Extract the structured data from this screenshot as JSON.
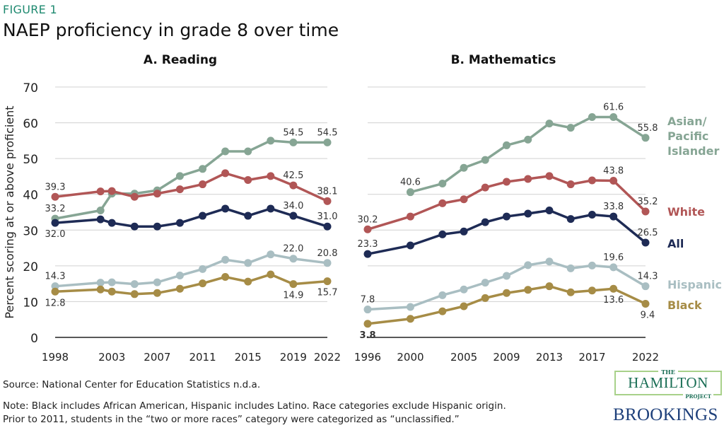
{
  "figure_label": "FIGURE 1",
  "title": "NAEP proficiency in grade 8 over time",
  "source": "Source: National Center for Education Statistics n.d.a.",
  "note_line1": "Note: Black includes African American, Hispanic includes Latino.  Race categories exclude Hispanic origin.",
  "note_line2": "Prior to 2011, students in the “two or more races” category were categorized as “unclassified.”",
  "logos": {
    "hamilton_top": "THE",
    "hamilton_main": "HAMILTON",
    "hamilton_bottom": "PROJECT",
    "brookings": "BROOKINGS"
  },
  "colors": {
    "asian": "#86a594",
    "white": "#b15656",
    "all": "#1e2b55",
    "hispanic": "#a9bec2",
    "black": "#a68c46",
    "grid": "#d0d0d0",
    "figure_label": "#1f8a70"
  },
  "chart_data": [
    {
      "type": "line",
      "title": "A. Reading",
      "ylabel": "Percent scoring at or above proficient",
      "ylim": [
        0,
        70
      ],
      "yticks": [
        0,
        10,
        20,
        30,
        40,
        50,
        60,
        70
      ],
      "xticks": [
        1998,
        2003,
        2007,
        2011,
        2015,
        2019,
        2022
      ],
      "xlim": [
        1998,
        2022
      ],
      "grid": true,
      "x": [
        1998,
        2002,
        2003,
        2005,
        2007,
        2009,
        2011,
        2013,
        2015,
        2017,
        2019,
        2022
      ],
      "series": [
        {
          "key": "asian",
          "values": [
            33.2,
            35.5,
            40.2,
            40.2,
            41.1,
            45.1,
            47.1,
            52.0,
            52.0,
            55.0,
            54.5,
            54.5
          ],
          "labels": [
            {
              "year": 1998,
              "text": "33.2"
            },
            {
              "year": 2019,
              "text": "54.5"
            },
            {
              "year": 2022,
              "text": "54.5"
            }
          ]
        },
        {
          "key": "white",
          "values": [
            39.3,
            40.8,
            40.9,
            39.3,
            40.2,
            41.4,
            42.8,
            45.9,
            44.0,
            45.1,
            42.5,
            38.1
          ],
          "labels": [
            {
              "year": 1998,
              "text": "39.3"
            },
            {
              "year": 2019,
              "text": "42.5"
            },
            {
              "year": 2022,
              "text": "38.1"
            }
          ]
        },
        {
          "key": "all",
          "values": [
            32.0,
            33.0,
            32.0,
            31.0,
            31.0,
            32.0,
            34.0,
            36.0,
            34.0,
            36.0,
            34.0,
            31.0
          ],
          "labels": [
            {
              "year": 1998,
              "text": "32.0",
              "below": true
            },
            {
              "year": 2019,
              "text": "34.0"
            },
            {
              "year": 2022,
              "text": "31.0"
            }
          ]
        },
        {
          "key": "hispanic",
          "values": [
            14.3,
            15.3,
            15.4,
            14.9,
            15.4,
            17.3,
            19.1,
            21.7,
            20.8,
            23.2,
            22.0,
            20.8
          ],
          "labels": [
            {
              "year": 1998,
              "text": "14.3"
            },
            {
              "year": 2019,
              "text": "22.0"
            },
            {
              "year": 2022,
              "text": "20.8"
            }
          ]
        },
        {
          "key": "black",
          "values": [
            12.8,
            13.4,
            12.8,
            12.1,
            12.4,
            13.6,
            15.1,
            16.9,
            15.6,
            17.6,
            14.9,
            15.7
          ],
          "labels": [
            {
              "year": 1998,
              "text": "12.8",
              "below": true
            },
            {
              "year": 2019,
              "text": "14.9",
              "below": true
            },
            {
              "year": 2022,
              "text": "15.7",
              "below": true
            }
          ]
        }
      ]
    },
    {
      "type": "line",
      "title": "B. Mathematics",
      "ylim": [
        0,
        70
      ],
      "xticks": [
        1996,
        2000,
        2005,
        2009,
        2013,
        2017,
        2022
      ],
      "xlim": [
        1996,
        2022
      ],
      "grid": true,
      "x": [
        1996,
        2000,
        2003,
        2005,
        2007,
        2009,
        2011,
        2013,
        2015,
        2017,
        2019,
        2022
      ],
      "series": [
        {
          "key": "asian",
          "name": "Asian/ Pacific Islander",
          "name_lines": [
            "Asian/",
            "Pacific",
            "Islander"
          ],
          "values": [
            null,
            40.6,
            43.0,
            47.4,
            49.6,
            53.7,
            55.3,
            59.8,
            58.6,
            61.6,
            61.6,
            55.8
          ],
          "labels": [
            {
              "year": 2000,
              "text": "40.6"
            },
            {
              "year": 2019,
              "text": "61.6"
            },
            {
              "year": 2022,
              "text": "55.8"
            }
          ]
        },
        {
          "key": "white",
          "name": "White",
          "name_lines": [
            "White"
          ],
          "values": [
            30.2,
            33.8,
            37.5,
            38.6,
            41.9,
            43.5,
            44.3,
            45.1,
            42.8,
            43.9,
            43.8,
            35.2
          ],
          "labels": [
            {
              "year": 1996,
              "text": "30.2"
            },
            {
              "year": 2019,
              "text": "43.8"
            },
            {
              "year": 2022,
              "text": "35.2"
            }
          ]
        },
        {
          "key": "all",
          "name": "All",
          "name_lines": [
            "All"
          ],
          "values": [
            23.3,
            25.7,
            28.8,
            29.6,
            32.2,
            33.8,
            34.6,
            35.5,
            33.1,
            34.3,
            33.8,
            26.5
          ],
          "labels": [
            {
              "year": 1996,
              "text": "23.3"
            },
            {
              "year": 2019,
              "text": "33.8"
            },
            {
              "year": 2022,
              "text": "26.5"
            }
          ]
        },
        {
          "key": "hispanic",
          "name": "Hispanic",
          "name_lines": [
            "Hispanic"
          ],
          "values": [
            7.8,
            8.5,
            11.8,
            13.4,
            15.3,
            17.2,
            20.2,
            21.2,
            19.3,
            20.1,
            19.6,
            14.3
          ],
          "labels": [
            {
              "year": 1996,
              "text": "7.8"
            },
            {
              "year": 2019,
              "text": "19.6"
            },
            {
              "year": 2022,
              "text": "14.3"
            }
          ]
        },
        {
          "key": "black",
          "name": "Black",
          "name_lines": [
            "Black"
          ],
          "values": [
            3.8,
            5.2,
            7.3,
            8.7,
            11.0,
            12.4,
            13.3,
            14.3,
            12.6,
            13.1,
            13.6,
            9.4
          ],
          "labels": [
            {
              "year": 1996,
              "text": "3.8",
              "below": true
            },
            {
              "year": 2019,
              "text": "13.6",
              "below": true
            },
            {
              "year": 2022,
              "text": "9.4",
              "below": true
            }
          ]
        }
      ]
    }
  ]
}
